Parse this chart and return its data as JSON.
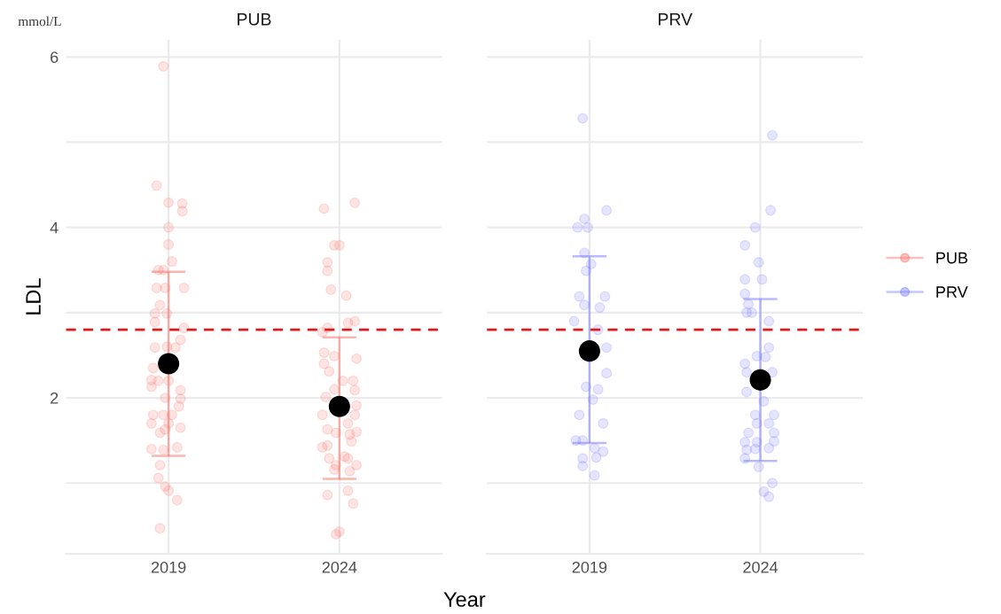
{
  "chart_data": [
    {
      "type": "scatter",
      "title": "PUB",
      "ylabel": "LDL",
      "xlabel": "Year",
      "annotations": [
        "mmol/L"
      ],
      "xlim": [
        2016,
        2027
      ],
      "xticks": [
        2019,
        2024
      ],
      "ylim": [
        0.17,
        6.2
      ],
      "yticks": [
        {
          "value": 1,
          "label": null
        },
        2,
        {
          "value": 3,
          "label": null
        },
        4,
        {
          "value": 5,
          "label": null
        },
        6
      ],
      "grid": true,
      "marker": "circle",
      "ref_lines": [
        {
          "axis": "y",
          "value": 2.8,
          "color": "#e0191c",
          "line_style": "dashed"
        }
      ],
      "series": [
        {
          "name": "PUB",
          "color": "#f8766d",
          "x": [
            2018.85,
            2018.65,
            2019,
            2019.4,
            2019.4,
            2019,
            2019,
            2019.1,
            2018.7,
            2018.85,
            2018.65,
            2018.9,
            2019.45,
            2018.75,
            2018.6,
            2018.95,
            2018.6,
            2019.45,
            2019.35,
            2018.6,
            2018.95,
            2019.2,
            2018.55,
            2019,
            2018.5,
            2018.7,
            2018.5,
            2019.35,
            2019.35,
            2018.9,
            2019.3,
            2018.55,
            2018.85,
            2019.1,
            2018.5,
            2019,
            2019.35,
            2018.75,
            2018.9,
            2018.5,
            2018.85,
            2019.25,
            2018.75,
            2018.7,
            2018.9,
            2019,
            2019.25,
            2018.75,
            2023.55,
            2024.45,
            2023.85,
            2024,
            2023.65,
            2023.65,
            2023.75,
            2024.2,
            2024.45,
            2024.25,
            2023.65,
            2023.5,
            2023.55,
            2024.5,
            2023.55,
            2023.85,
            2023.7,
            2024.1,
            2024.4,
            2024.45,
            2023.85,
            2023.6,
            2024.5,
            2023.5,
            2024.45,
            2024.25,
            2023.65,
            2024.5,
            2023.9,
            2024.3,
            2024.35,
            2023.5,
            2023.65,
            2023.7,
            2024.15,
            2024.25,
            2024.5,
            2023.9,
            2024.3,
            2023.85,
            2023.65,
            2024.25,
            2024.4,
            2023.9,
            2024
          ],
          "values": [
            5.89,
            4.49,
            4.29,
            4.28,
            4.19,
            4.0,
            3.8,
            3.6,
            3.5,
            3.5,
            3.29,
            3.29,
            3.29,
            3.09,
            2.99,
            2.99,
            2.89,
            2.82,
            2.68,
            2.59,
            2.6,
            2.59,
            2.35,
            2.2,
            2.21,
            2.2,
            2.13,
            2.09,
            1.99,
            2.0,
            1.9,
            1.8,
            1.8,
            1.8,
            1.7,
            1.7,
            1.65,
            1.59,
            1.63,
            1.4,
            1.39,
            1.42,
            1.21,
            1.06,
            0.96,
            0.91,
            0.8,
            0.47,
            4.22,
            4.29,
            3.79,
            3.79,
            3.59,
            3.49,
            3.27,
            3.2,
            2.9,
            2.88,
            2.82,
            2.77,
            2.53,
            2.46,
            2.4,
            2.49,
            2.31,
            2.2,
            2.2,
            2.09,
            2.1,
            2.01,
            1.91,
            1.8,
            1.8,
            1.7,
            1.63,
            1.6,
            1.59,
            1.57,
            1.49,
            1.42,
            1.44,
            1.29,
            1.31,
            1.29,
            1.21,
            1.21,
            1.14,
            1.16,
            0.86,
            0.91,
            0.76,
            0.4,
            0.43
          ]
        },
        {
          "type": "scatter",
          "color": "#000000",
          "x": [
            2019,
            2024
          ],
          "values": [
            2.4,
            1.9
          ],
          "errors": [
            [
              1.32,
              3.48
            ],
            [
              1.05,
              2.71
            ]
          ]
        }
      ]
    },
    {
      "type": "scatter",
      "title": "PRV",
      "tick_labels": "x",
      "legend": "right",
      "xlim": [
        2016,
        2027
      ],
      "xticks": [
        2019,
        2024
      ],
      "ylim": [
        0.17,
        6.2
      ],
      "yticks": [
        {
          "value": 1,
          "label": null
        },
        2,
        {
          "value": 3,
          "label": null
        },
        4,
        {
          "value": 5,
          "label": null
        },
        6
      ],
      "grid": true,
      "marker": "circle",
      "ref_lines": [
        {
          "axis": "y",
          "value": 2.8,
          "color": "#e0191c",
          "line_style": "dashed"
        }
      ],
      "series": [
        {
          "name": "PRV",
          "color": "#7f7fff",
          "x": [
            2018.8,
            2019.5,
            2018.85,
            2018.65,
            2018.95,
            2018.85,
            2019.05,
            2018.9,
            2018.7,
            2019.45,
            2018.85,
            2019.3,
            2018.55,
            2019.25,
            2019.5,
            2019.5,
            2018.9,
            2019.25,
            2019.1,
            2018.7,
            2019.4,
            2018.6,
            2018.8,
            2019.15,
            2019.4,
            2019.2,
            2018.8,
            2018.8,
            2019.15,
            2024.35,
            2024.3,
            2023.85,
            2023.55,
            2023.95,
            2023.55,
            2024.05,
            2023.55,
            2023.65,
            2023.6,
            2023.75,
            2024.25,
            2024.25,
            2023.9,
            2024.15,
            2023.55,
            2023.6,
            2024.35,
            2023.6,
            2024.1,
            2023.85,
            2024.4,
            2023.9,
            2024.25,
            2023.65,
            2024.4,
            2023.55,
            2023.9,
            2024.4,
            2023.6,
            2023.85,
            2024.25,
            2023.55,
            2023.95,
            2024.35,
            2024.1,
            2024.25
          ],
          "values": [
            5.28,
            4.2,
            4.1,
            4.0,
            4.0,
            3.7,
            3.57,
            3.49,
            3.19,
            3.19,
            3.09,
            3.06,
            2.9,
            2.8,
            2.59,
            2.29,
            2.13,
            2.1,
            1.98,
            1.8,
            1.7,
            1.5,
            1.5,
            1.41,
            1.37,
            1.3,
            1.29,
            1.2,
            1.09,
            5.08,
            4.2,
            4.0,
            3.79,
            3.59,
            3.39,
            3.39,
            3.22,
            3.1,
            3.0,
            3.0,
            2.9,
            2.59,
            2.49,
            2.48,
            2.4,
            2.3,
            2.3,
            2.07,
            1.96,
            1.8,
            1.8,
            1.7,
            1.7,
            1.59,
            1.59,
            1.48,
            1.48,
            1.49,
            1.39,
            1.4,
            1.41,
            1.29,
            1.19,
            1.0,
            0.9,
            0.84
          ]
        },
        {
          "type": "scatter",
          "color": "#000000",
          "x": [
            2019,
            2024
          ],
          "values": [
            2.55,
            2.21
          ],
          "errors": [
            [
              1.47,
              3.66
            ],
            [
              1.26,
              3.16
            ]
          ]
        }
      ]
    }
  ]
}
